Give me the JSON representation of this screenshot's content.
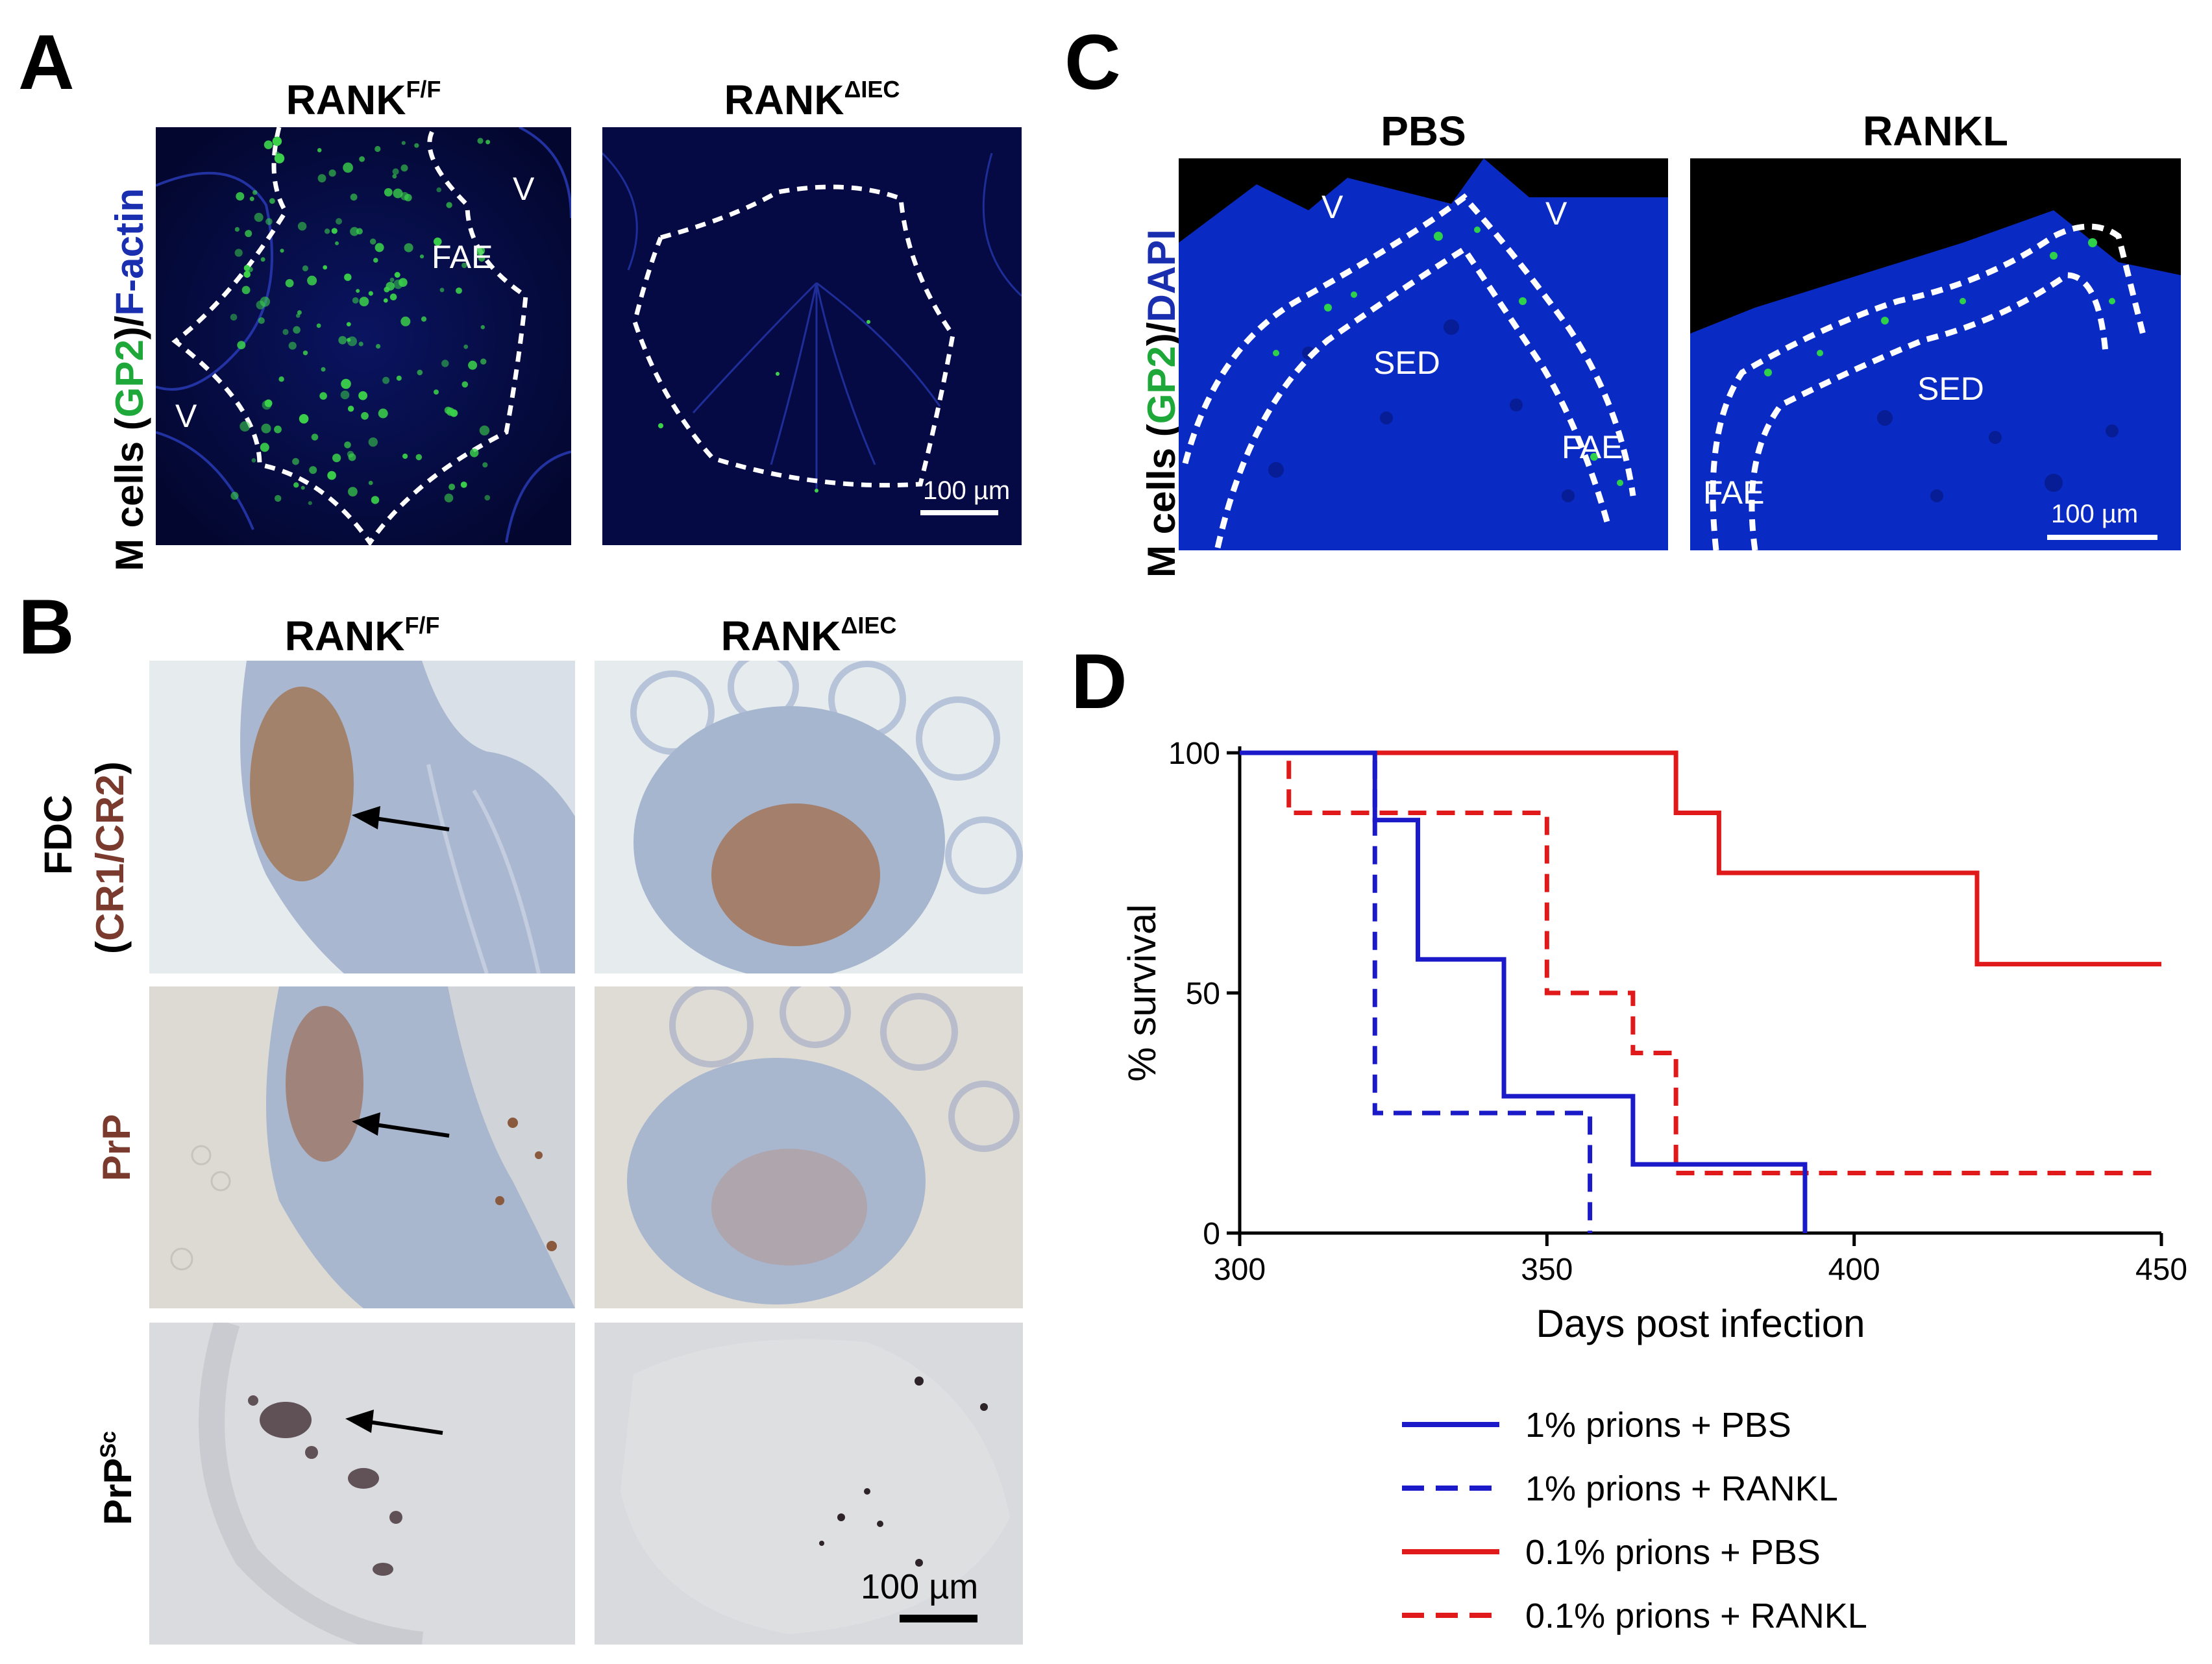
{
  "panel_a": {
    "letter": "A",
    "row_label": {
      "prefix": "M cells (",
      "marker1": "GP2",
      "sep": ")/",
      "marker2": "F-actin"
    },
    "col1": {
      "base": "RANK",
      "sup": "F/F"
    },
    "col2": {
      "base": "RANK",
      "sup": "ΔIEC"
    },
    "labels": {
      "v_top": "V",
      "fae": "FAE",
      "v_left": "V"
    },
    "scale_bar": "100 µm"
  },
  "panel_b": {
    "letter": "B",
    "col1": {
      "base": "RANK",
      "sup": "F/F"
    },
    "col2": {
      "base": "RANK",
      "sup": "ΔIEC"
    },
    "row1": {
      "line1": "FDC",
      "line2_open": "(",
      "line2_marker": "CR1/CR2",
      "line2_close": ")"
    },
    "row2": "PrP",
    "row3": {
      "base": "PrP",
      "sup": "Sc"
    },
    "scale_bar": "100 µm"
  },
  "panel_c": {
    "letter": "C",
    "row_label": {
      "prefix": "M cells (",
      "marker1": "GP2",
      "sep": ")/",
      "marker2": "DAPI"
    },
    "col1": "PBS",
    "col2": "RANKL",
    "labels": {
      "v1": "V",
      "v2": "V",
      "sed1": "SED",
      "fae1": "FAE",
      "sed2": "SED",
      "fae2": "FAE"
    },
    "scale_bar": "100 µm"
  },
  "panel_d": {
    "letter": "D",
    "chart_data": {
      "type": "line",
      "subtype": "kaplan-meier",
      "xlabel": "Days post infection",
      "ylabel": "% survival",
      "xlim": [
        300,
        450
      ],
      "ylim": [
        0,
        100
      ],
      "xticks": [
        300,
        350,
        400,
        450
      ],
      "yticks": [
        0,
        50,
        100
      ],
      "series": [
        {
          "name": "1% prions + PBS",
          "color": "#1a1ac8",
          "dash": false,
          "steps": [
            [
              300,
              100
            ],
            [
              322,
              86
            ],
            [
              329,
              57
            ],
            [
              343,
              28.5
            ],
            [
              364,
              14.3
            ],
            [
              392,
              0
            ]
          ]
        },
        {
          "name": "1% prions + RANKL",
          "color": "#1a1ac8",
          "dash": true,
          "steps": [
            [
              300,
              100
            ],
            [
              322,
              25
            ],
            [
              357,
              0
            ]
          ]
        },
        {
          "name": "0.1% prions + PBS",
          "color": "#e01a1a",
          "dash": false,
          "steps": [
            [
              300,
              100
            ],
            [
              371,
              87.5
            ],
            [
              378,
              75
            ],
            [
              420,
              56
            ],
            [
              450,
              56
            ]
          ]
        },
        {
          "name": "0.1% prions + RANKL",
          "color": "#e01a1a",
          "dash": true,
          "steps": [
            [
              300,
              100
            ],
            [
              308,
              87.5
            ],
            [
              350,
              50
            ],
            [
              364,
              37.5
            ],
            [
              371,
              12.5
            ],
            [
              450,
              12.5
            ]
          ]
        }
      ]
    }
  }
}
